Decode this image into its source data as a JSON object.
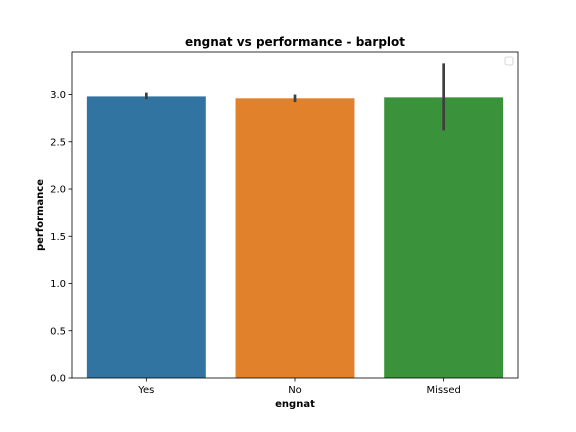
{
  "chart_data": {
    "type": "bar",
    "title": "engnat vs performance - barplot",
    "xlabel": "engnat",
    "ylabel": "performance",
    "categories": [
      "Yes",
      "No",
      "Missed"
    ],
    "values": [
      2.98,
      2.96,
      2.97
    ],
    "error_low": [
      2.95,
      2.92,
      2.62
    ],
    "error_high": [
      3.02,
      3.0,
      3.33
    ],
    "colors": [
      "#3274a1",
      "#e1812c",
      "#3a923a"
    ],
    "ylim": [
      0,
      3.45
    ],
    "yticks": [
      "0.0",
      "0.5",
      "1.0",
      "1.5",
      "2.0",
      "2.5",
      "3.0"
    ],
    "legend": "top-right",
    "grid": false
  }
}
